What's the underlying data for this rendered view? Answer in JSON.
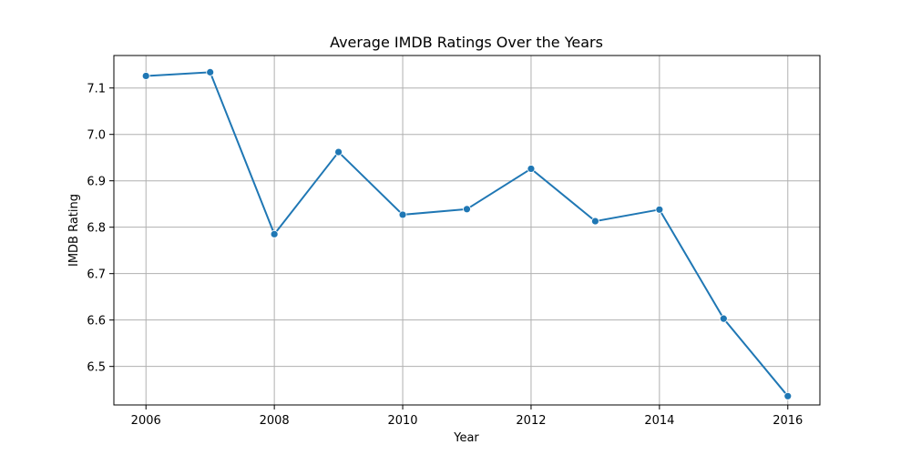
{
  "chart_data": {
    "type": "line",
    "title": "Average IMDB Ratings Over the Years",
    "xlabel": "Year",
    "ylabel": "IMDB Rating",
    "xlim": [
      2005.5,
      2016.5
    ],
    "ylim": [
      6.417,
      7.17
    ],
    "x_ticks": [
      2006,
      2008,
      2010,
      2012,
      2014,
      2016
    ],
    "y_ticks": [
      6.5,
      6.6,
      6.7,
      6.8,
      6.9,
      7.0,
      7.1
    ],
    "grid": true,
    "markers": true,
    "color": "#1f77b4",
    "series": [
      {
        "x": [
          2006,
          2007,
          2008,
          2009,
          2010,
          2011,
          2012,
          2013,
          2014,
          2015,
          2016
        ],
        "y": [
          7.126,
          7.134,
          6.785,
          6.962,
          6.827,
          6.839,
          6.926,
          6.813,
          6.838,
          6.603,
          6.436
        ]
      }
    ]
  }
}
